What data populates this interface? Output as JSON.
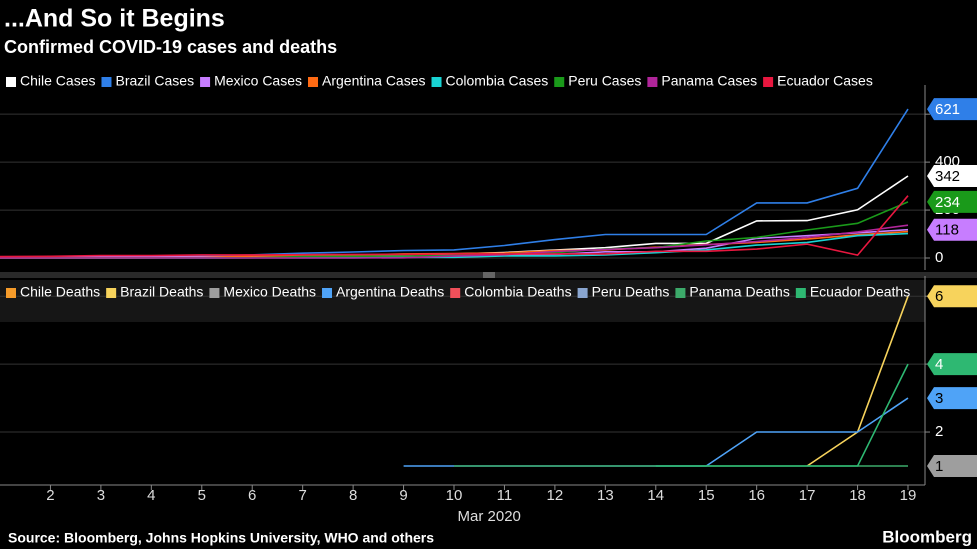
{
  "title": "...And So it Begins",
  "subtitle": "Confirmed COVID-19 cases and deaths",
  "source": "Source: Bloomberg, Johns Hopkins University, WHO and others",
  "brand": "Bloomberg",
  "chart_data": [
    {
      "type": "line",
      "x": [
        1,
        2,
        3,
        4,
        5,
        6,
        7,
        8,
        9,
        10,
        11,
        12,
        13,
        14,
        15,
        16,
        17,
        18,
        19
      ],
      "xlim": [
        1,
        19
      ],
      "ylim": [
        -50,
        680
      ],
      "yticks": [
        0,
        200,
        400,
        600
      ],
      "grid": true,
      "series": [
        {
          "name": "Chile Cases",
          "color": "#ffffff",
          "values": [
            0,
            0,
            0,
            1,
            4,
            5,
            7,
            10,
            13,
            17,
            23,
            33,
            43,
            61,
            61,
            155,
            156,
            201,
            342
          ],
          "end_label": "342"
        },
        {
          "name": "Brazil Cases",
          "color": "#2f7fe8",
          "values": [
            2,
            2,
            2,
            3,
            8,
            13,
            20,
            25,
            31,
            34,
            52,
            77,
            98,
            98,
            98,
            230,
            230,
            291,
            621
          ],
          "end_label": "621"
        },
        {
          "name": "Mexico Cases",
          "color": "#c77dff",
          "values": [
            5,
            5,
            5,
            5,
            5,
            6,
            7,
            7,
            7,
            7,
            12,
            15,
            26,
            26,
            41,
            82,
            93,
            105,
            118
          ],
          "end_label": "118"
        },
        {
          "name": "Argentina Cases",
          "color": "#ff6a13",
          "values": [
            0,
            1,
            1,
            1,
            2,
            8,
            9,
            12,
            17,
            19,
            21,
            31,
            34,
            45,
            56,
            65,
            79,
            97,
            110
          ]
        },
        {
          "name": "Colombia Cases",
          "color": "#19d3d3",
          "values": [
            0,
            0,
            0,
            0,
            0,
            1,
            1,
            1,
            3,
            3,
            9,
            9,
            13,
            22,
            34,
            54,
            65,
            93,
            102
          ]
        },
        {
          "name": "Peru Cases",
          "color": "#1a9a1a",
          "values": [
            0,
            0,
            0,
            0,
            0,
            1,
            6,
            7,
            9,
            11,
            17,
            22,
            38,
            43,
            71,
            86,
            117,
            145,
            234
          ],
          "end_label": "234"
        },
        {
          "name": "Panama Cases",
          "color": "#b0259a",
          "values": [
            0,
            0,
            0,
            0,
            0,
            0,
            0,
            0,
            1,
            8,
            14,
            27,
            36,
            43,
            55,
            69,
            86,
            109,
            137
          ]
        },
        {
          "name": "Ecuador Cases",
          "color": "#e8173f",
          "values": [
            6,
            7,
            10,
            10,
            13,
            13,
            14,
            15,
            15,
            17,
            17,
            17,
            17,
            28,
            28,
            37,
            58,
            12,
            260
          ]
        }
      ]
    },
    {
      "type": "line",
      "x": [
        1,
        2,
        3,
        4,
        5,
        6,
        7,
        8,
        9,
        10,
        11,
        12,
        13,
        14,
        15,
        16,
        17,
        18,
        19
      ],
      "xlim": [
        1,
        19
      ],
      "xticks": [
        2,
        3,
        4,
        5,
        6,
        7,
        8,
        9,
        10,
        11,
        12,
        13,
        14,
        15,
        16,
        17,
        18,
        19
      ],
      "xlabel": "Mar 2020",
      "ylim": [
        0.44,
        6.3
      ],
      "yticks": [
        2,
        4,
        6
      ],
      "grid": true,
      "series": [
        {
          "name": "Chile Deaths",
          "color": "#f59b2a",
          "values": [
            null,
            null,
            null,
            null,
            null,
            null,
            null,
            null,
            null,
            null,
            null,
            null,
            null,
            null,
            null,
            null,
            null,
            null,
            null
          ]
        },
        {
          "name": "Brazil Deaths",
          "color": "#f7d35c",
          "values": [
            null,
            null,
            null,
            null,
            null,
            null,
            null,
            null,
            null,
            null,
            null,
            null,
            null,
            null,
            null,
            null,
            1,
            2,
            6
          ],
          "end_label": "6"
        },
        {
          "name": "Mexico Deaths",
          "color": "#9e9e9e",
          "values": [
            null,
            null,
            null,
            null,
            null,
            null,
            null,
            null,
            null,
            null,
            null,
            null,
            null,
            null,
            null,
            null,
            null,
            null,
            1
          ],
          "end_label": "1"
        },
        {
          "name": "Argentina Deaths",
          "color": "#4fa3f7",
          "values": [
            null,
            null,
            null,
            null,
            null,
            null,
            null,
            null,
            1,
            1,
            1,
            1,
            1,
            1,
            1,
            2,
            2,
            2,
            3
          ],
          "end_label": "3"
        },
        {
          "name": "Colombia Deaths",
          "color": "#f0505a",
          "values": [
            null,
            null,
            null,
            null,
            null,
            null,
            null,
            null,
            null,
            null,
            null,
            null,
            null,
            null,
            null,
            null,
            null,
            null,
            null
          ]
        },
        {
          "name": "Peru Deaths",
          "color": "#8aa6d0",
          "values": [
            null,
            null,
            null,
            null,
            null,
            null,
            null,
            null,
            null,
            null,
            null,
            null,
            null,
            null,
            null,
            null,
            null,
            null,
            null
          ]
        },
        {
          "name": "Panama Deaths",
          "color": "#3caa6a",
          "values": [
            null,
            null,
            null,
            null,
            null,
            null,
            null,
            null,
            null,
            1,
            1,
            1,
            1,
            1,
            1,
            1,
            1,
            1,
            1
          ]
        },
        {
          "name": "Ecuador Deaths",
          "color": "#2eb872",
          "values": [
            null,
            null,
            null,
            null,
            null,
            null,
            null,
            null,
            null,
            null,
            null,
            null,
            null,
            1,
            1,
            1,
            1,
            1,
            4
          ],
          "end_label": "4"
        }
      ]
    }
  ]
}
